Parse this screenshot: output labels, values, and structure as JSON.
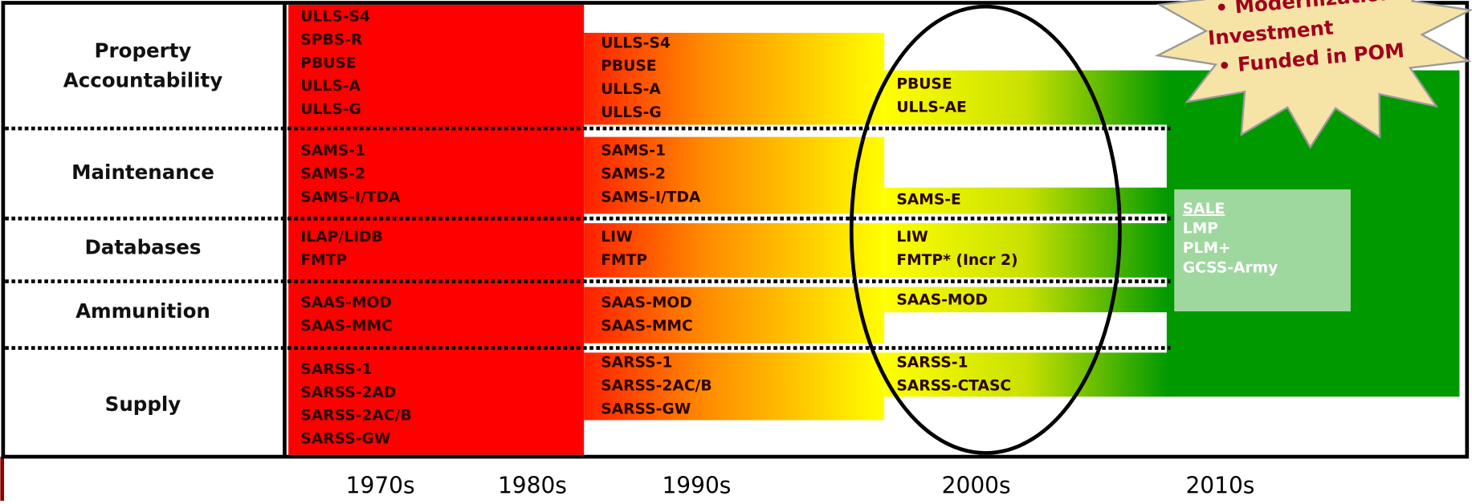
{
  "row_labels": [
    [
      "Property",
      "Accountability"
    ],
    [
      "Maintenance"
    ],
    [
      "Databases"
    ],
    [
      "Ammunition"
    ],
    [
      "Supply"
    ]
  ],
  "eras": [
    [
      [
        "ULLS-S4",
        "SPBS-R",
        "PBUSE",
        "ULLS-A",
        "ULLS-G"
      ],
      [
        "SAMS-1",
        "SAMS-2",
        "SAMS-I/TDA"
      ],
      [
        "ILAP/LIDB",
        "FMTP"
      ],
      [
        "SAAS-MOD",
        "SAAS-MMC"
      ],
      [
        "SARSS-1",
        "SARSS-2AD",
        "SARSS-2AC/B",
        "SARSS-GW"
      ]
    ],
    [
      [
        "ULLS-S4",
        "PBUSE",
        "ULLS-A",
        "ULLS-G"
      ],
      [
        "SAMS-1",
        "SAMS-2",
        "SAMS-I/TDA"
      ],
      [
        "LIW",
        "FMTP"
      ],
      [
        "SAAS-MOD",
        "SAAS-MMC"
      ],
      [
        "SARSS-1",
        "SARSS-2AC/B",
        "SARSS-GW"
      ]
    ],
    [
      [
        "PBUSE",
        "ULLS-AE"
      ],
      [
        "SAMS-E"
      ],
      [
        "LIW",
        "FMTP* (Incr 2)"
      ],
      [
        "SAAS-MOD"
      ],
      [
        "SARSS-1",
        "SARSS-CTASC"
      ]
    ]
  ],
  "modern_systems": [
    "SALE",
    "LMP",
    "PLM+",
    "GCSS-Army"
  ],
  "callout": [
    "• Modernization",
    "Investment",
    "• Funded in POM"
  ],
  "decades": [
    "1970s",
    "1980s",
    "1990s",
    "2000s",
    "2010s"
  ]
}
